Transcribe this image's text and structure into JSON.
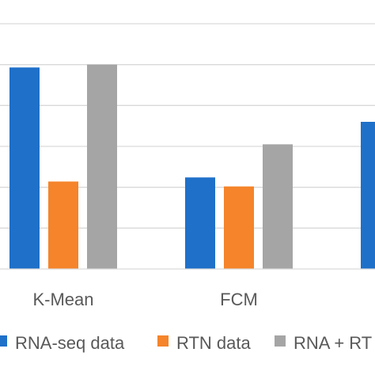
{
  "chart_data": {
    "type": "bar",
    "categories": [
      "K-Mean",
      "FCM",
      ""
    ],
    "series": [
      {
        "name": "RNA-seq data",
        "color": "#1f70c9",
        "values": [
          0.493,
          0.224,
          0.36
        ]
      },
      {
        "name": "RTN data",
        "color": "#f5842a",
        "values": [
          0.214,
          0.202,
          null
        ]
      },
      {
        "name": "RNA + RT",
        "color": "#a5a5a5",
        "values": [
          0.5,
          0.305,
          null
        ]
      }
    ],
    "ylim": [
      0,
      0.6
    ],
    "grid": true,
    "legend_position": "bottom",
    "title": "",
    "xlabel": "",
    "ylabel": ""
  }
}
